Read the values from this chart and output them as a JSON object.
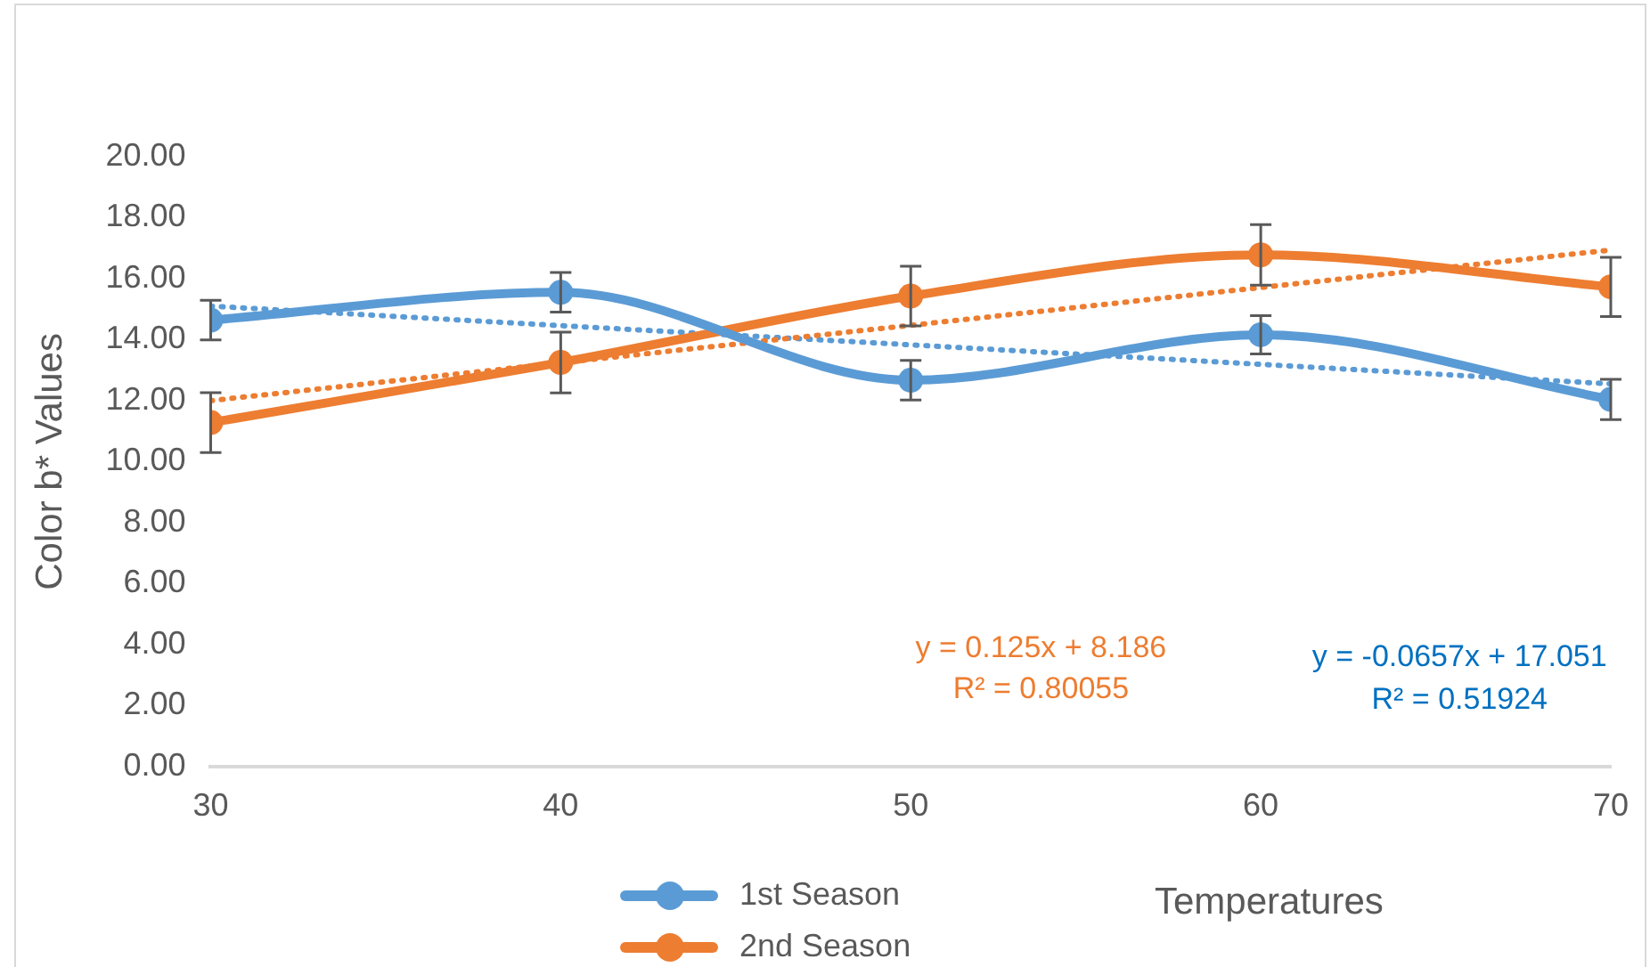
{
  "chart_data": {
    "type": "line",
    "xlabel": "Temperatures",
    "ylabel": "Color b* Values",
    "x": [
      30,
      40,
      50,
      60,
      70
    ],
    "xlim": [
      30,
      70
    ],
    "xticks": [
      30,
      40,
      50,
      60,
      70
    ],
    "ylim": [
      0,
      20
    ],
    "yticks": [
      {
        "value": 0,
        "label": "0.00"
      },
      {
        "value": 2,
        "label": "2.00"
      },
      {
        "value": 4,
        "label": "4.00"
      },
      {
        "value": 6,
        "label": "6.00"
      },
      {
        "value": 8,
        "label": "8.00"
      },
      {
        "value": 10,
        "label": "10.00"
      },
      {
        "value": 12,
        "label": "12.00"
      },
      {
        "value": 14,
        "label": "14.00"
      },
      {
        "value": 16,
        "label": "16.00"
      },
      {
        "value": 18,
        "label": "18.00"
      },
      {
        "value": 20,
        "label": "20.00"
      }
    ],
    "grid": false,
    "legend": "bottom",
    "marker": "circle",
    "line_style": "solid",
    "series": [
      {
        "name": "1st Season",
        "color": "#5b9bd5",
        "values": [
          14.64,
          15.55,
          12.67,
          14.16,
          12.04
        ],
        "errors": [
          0.65,
          0.65,
          0.65,
          0.63,
          0.66
        ]
      },
      {
        "name": "2nd Season",
        "color": "#ed7d31",
        "values": [
          11.28,
          13.25,
          15.43,
          16.78,
          15.73
        ],
        "errors": [
          0.98,
          1.0,
          0.98,
          0.99,
          0.97
        ]
      },
      {
        "type": "line",
        "values": [
          15.1,
          14.46,
          13.83,
          13.19,
          12.55
        ],
        "color": "#5b9bd5",
        "line_style": "dotted",
        "marker": "none"
      },
      {
        "type": "line",
        "values": [
          12.0,
          13.24,
          14.47,
          15.71,
          16.94
        ],
        "color": "#ed7d31",
        "line_style": "dotted",
        "marker": "none"
      }
    ],
    "annotations": [
      "y = 0.125x + 8.186",
      "R² = 0.80055",
      "y = -0.0657x + 17.051",
      "R² = 0.51924"
    ]
  }
}
